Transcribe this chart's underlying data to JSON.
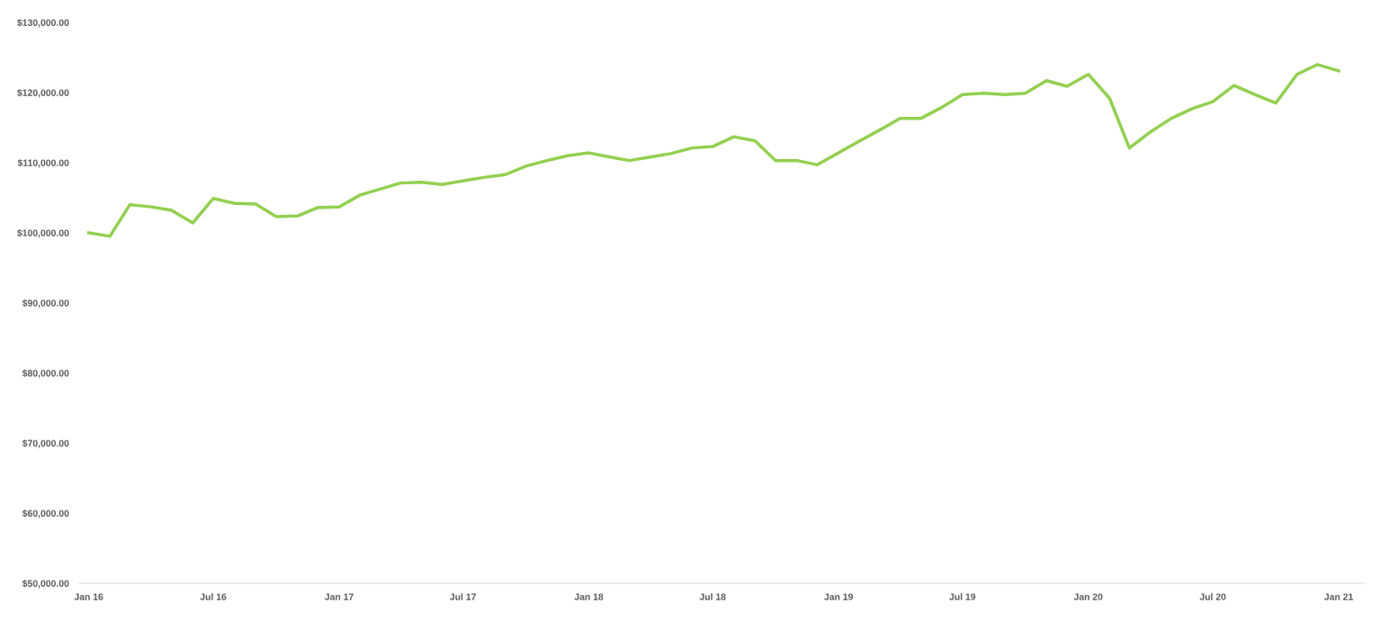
{
  "chart_data": {
    "type": "line",
    "x": [
      "2016-01",
      "2016-02",
      "2016-03",
      "2016-04",
      "2016-05",
      "2016-06",
      "2016-07",
      "2016-08",
      "2016-09",
      "2016-10",
      "2016-11",
      "2016-12",
      "2017-01",
      "2017-02",
      "2017-03",
      "2017-04",
      "2017-05",
      "2017-06",
      "2017-07",
      "2017-08",
      "2017-09",
      "2017-10",
      "2017-11",
      "2017-12",
      "2018-01",
      "2018-02",
      "2018-03",
      "2018-04",
      "2018-05",
      "2018-06",
      "2018-07",
      "2018-08",
      "2018-09",
      "2018-10",
      "2018-11",
      "2018-12",
      "2019-01",
      "2019-02",
      "2019-03",
      "2019-04",
      "2019-05",
      "2019-06",
      "2019-07",
      "2019-08",
      "2019-09",
      "2019-10",
      "2019-11",
      "2019-12",
      "2020-01",
      "2020-02",
      "2020-03",
      "2020-04",
      "2020-05",
      "2020-06",
      "2020-07",
      "2020-08",
      "2020-09",
      "2020-10",
      "2020-11",
      "2020-12",
      "2021-01"
    ],
    "series": [
      {
        "color": "#92d050",
        "values": [
          100000,
          99500,
          104000,
          103700,
          103200,
          101400,
          104900,
          104200,
          104100,
          102300,
          102400,
          103600,
          103700,
          105400,
          106200,
          107100,
          107200,
          106900,
          107400,
          107900,
          108300,
          109500,
          110300,
          111000,
          111400,
          110800,
          110300,
          110800,
          111300,
          112100,
          112300,
          113700,
          113100,
          110300,
          110300,
          109700,
          111400,
          113100,
          114600,
          116300,
          116300,
          117900,
          119700,
          119900,
          119700,
          119900,
          121700,
          120900,
          122600,
          119200,
          112100,
          114400,
          116300,
          117700,
          118700,
          121000,
          119700,
          118500,
          122600,
          124000,
          123100
        ]
      }
    ],
    "xlim": [
      "2015-12-18",
      "2021-02-08"
    ],
    "xticks": [
      {
        "value": "2016-01",
        "label": "Jan 16"
      },
      {
        "value": "2016-07",
        "label": "Jul 16"
      },
      {
        "value": "2017-01",
        "label": "Jan 17"
      },
      {
        "value": "2017-07",
        "label": "Jul 17"
      },
      {
        "value": "2018-01",
        "label": "Jan 18"
      },
      {
        "value": "2018-07",
        "label": "Jul 18"
      },
      {
        "value": "2019-01",
        "label": "Jan 19"
      },
      {
        "value": "2019-07",
        "label": "Jul 19"
      },
      {
        "value": "2020-01",
        "label": "Jan 20"
      },
      {
        "value": "2020-07",
        "label": "Jul 20"
      },
      {
        "value": "2021-01",
        "label": "Jan 21"
      }
    ],
    "ylim": [
      50000,
      130000
    ],
    "yticks": [
      {
        "value": 50000,
        "label": "$50,000.00"
      },
      {
        "value": 60000,
        "label": "$60,000.00"
      },
      {
        "value": 70000,
        "label": "$70,000.00"
      },
      {
        "value": 80000,
        "label": "$80,000.00"
      },
      {
        "value": 90000,
        "label": "$90,000.00"
      },
      {
        "value": 100000,
        "label": "$100,000.00"
      },
      {
        "value": 110000,
        "label": "$110,000.00"
      },
      {
        "value": 120000,
        "label": "$120,000.00"
      },
      {
        "value": 130000,
        "label": "$130,000.00"
      }
    ],
    "grid": false,
    "legend": false,
    "marker": "none",
    "line_style": "solid"
  }
}
